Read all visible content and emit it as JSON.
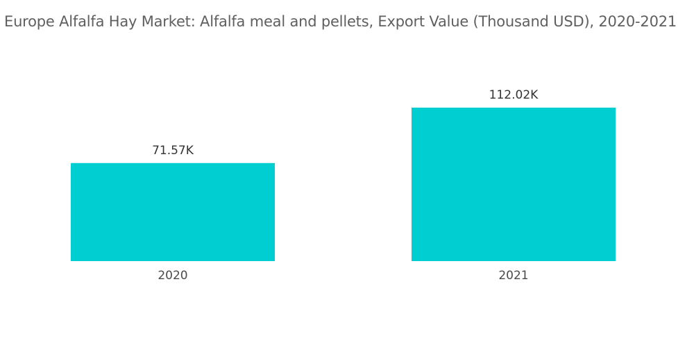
{
  "chart_data": {
    "type": "bar",
    "title": "Europe Alfalfa Hay Market: Alfalfa meal and pellets, Export Value (Thousand USD), 2020-2021",
    "categories": [
      "2020",
      "2021"
    ],
    "values": [
      71.57,
      112.02
    ],
    "data_labels": [
      "71.57K",
      "112.02K"
    ],
    "xlabel": "",
    "ylabel": "",
    "ylim": [
      0,
      112.02
    ],
    "grid": false,
    "legend": "none",
    "colors": {
      "bar": "#00CED1"
    }
  }
}
